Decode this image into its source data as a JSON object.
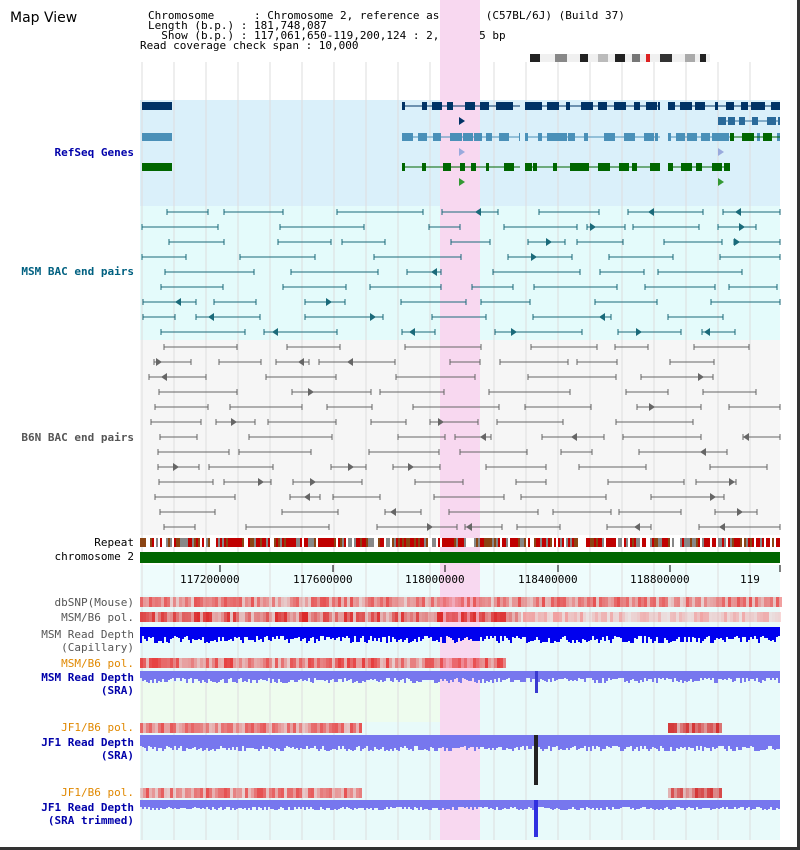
{
  "header": {
    "title": "Map View",
    "chromosome_line": "Chromosome      : Chromosome 2, reference assembly (C57BL/6J) (Build 37)",
    "length_line": "Length (b.p.) : 181,748,087",
    "show_line": "  Show (b.p.) : 117,061,650-119,200,124 : 2,138,475 bp",
    "coverage_line": "Read coverage check span : 10,000"
  },
  "tracks": {
    "refseq": "RefSeq Genes",
    "msm_bac": "MSM BAC end pairs",
    "b6n_bac": "B6N BAC end pairs",
    "repeat": "Repeat",
    "chromosome": "chromosome 2",
    "dbsnp": "dbSNP(Mouse)",
    "msm_b6_pol": "MSM/B6 pol.",
    "msm_read_depth_cap_1": "MSM Read Depth",
    "msm_read_depth_cap_2": "(Capillary)",
    "msm_b6_pol_sra": "MSM/B6 pol.",
    "msm_read_depth_sra_1": "MSM Read Depth",
    "msm_read_depth_sra_2": "(SRA)",
    "jf1_b6_pol": "JF1/B6 pol.",
    "jf1_read_depth_1": "JF1 Read Depth",
    "jf1_read_depth_2": "(SRA)",
    "jf1_b6_pol_2": "JF1/B6 pol.",
    "jf1_read_depth_trim_1": "JF1 Read Depth",
    "jf1_read_depth_trim_2": "(SRA trimmed)"
  },
  "ruler": {
    "ticks": [
      "117200000",
      "117600000",
      "118000000",
      "118400000",
      "118800000",
      "119"
    ]
  },
  "colors": {
    "refseq_dark": "#003366",
    "refseq_light": "#4a90b8",
    "refseq_green": "#006600",
    "highlight": "#f8d8f0",
    "chromosome": "#006600",
    "msm_depth": "#0000ee",
    "sra_depth": "#7777ee"
  }
}
